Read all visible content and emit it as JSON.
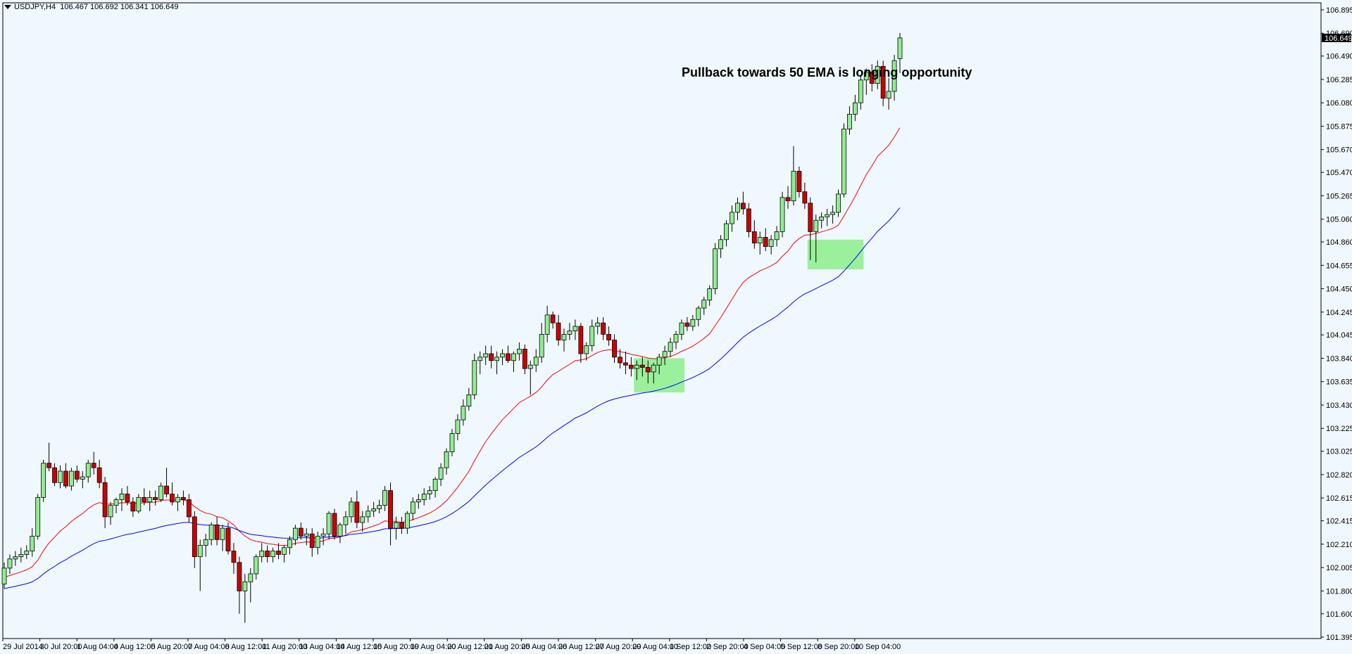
{
  "header": {
    "symbol": "USDJPY,H4",
    "ohlc": "106.467 106.692 106.341 106.649"
  },
  "annotation_text": "Pullback towards 50 EMA is longing opportunity",
  "current_price_label": "106.649",
  "colors": {
    "background": "#f0f8ff",
    "bull_body": "#90ee90",
    "bear_body": "#cc0000",
    "wick": "#000000",
    "ema_fast": "#ff0000",
    "ema_slow": "#0000ff",
    "highlight": "#90ee90"
  },
  "chart_data": {
    "type": "candlestick",
    "title": "",
    "ylim": [
      101.395,
      106.895
    ],
    "y_ticks": [
      "106.895",
      "106.690",
      "106.490",
      "106.285",
      "106.080",
      "105.875",
      "105.670",
      "105.470",
      "105.265",
      "105.060",
      "104.860",
      "104.655",
      "104.450",
      "104.245",
      "104.045",
      "103.840",
      "103.635",
      "103.430",
      "103.225",
      "103.025",
      "102.820",
      "102.615",
      "102.415",
      "102.210",
      "102.005",
      "101.800",
      "101.600",
      "101.395"
    ],
    "x_ticks": [
      "29 Jul 2014",
      "30 Jul 20:00",
      "1 Aug 04:00",
      "4 Aug 12:00",
      "5 Aug 20:00",
      "7 Aug 04:00",
      "8 Aug 12:00",
      "11 Aug 20:00",
      "13 Aug 04:00",
      "14 Aug 12:00",
      "15 Aug 20:00",
      "19 Aug 04:00",
      "20 Aug 12:00",
      "21 Aug 20:00",
      "25 Aug 04:00",
      "26 Aug 12:00",
      "27 Aug 20:00",
      "29 Aug 04:00",
      "1 Sep 12:00",
      "2 Sep 20:00",
      "4 Sep 04:00",
      "5 Sep 12:00",
      "8 Sep 20:00",
      "10 Sep 04:00"
    ],
    "candles": [
      [
        101.86,
        102.05,
        101.82,
        102.0
      ],
      [
        102.0,
        102.12,
        101.95,
        102.08
      ],
      [
        102.08,
        102.15,
        102.02,
        102.1
      ],
      [
        102.1,
        102.18,
        102.05,
        102.12
      ],
      [
        102.12,
        102.2,
        102.08,
        102.15
      ],
      [
        102.15,
        102.35,
        102.1,
        102.28
      ],
      [
        102.28,
        102.65,
        102.25,
        102.62
      ],
      [
        102.62,
        102.95,
        102.58,
        102.92
      ],
      [
        102.92,
        103.1,
        102.85,
        102.88
      ],
      [
        102.88,
        102.92,
        102.72,
        102.75
      ],
      [
        102.75,
        102.9,
        102.7,
        102.85
      ],
      [
        102.85,
        102.92,
        102.7,
        102.72
      ],
      [
        102.72,
        102.88,
        102.68,
        102.85
      ],
      [
        102.85,
        102.9,
        102.75,
        102.78
      ],
      [
        102.78,
        102.85,
        102.7,
        102.8
      ],
      [
        102.8,
        102.95,
        102.75,
        102.92
      ],
      [
        102.92,
        103.02,
        102.82,
        102.88
      ],
      [
        102.88,
        102.95,
        102.7,
        102.75
      ],
      [
        102.75,
        102.8,
        102.35,
        102.45
      ],
      [
        102.45,
        102.58,
        102.38,
        102.55
      ],
      [
        102.55,
        102.62,
        102.48,
        102.6
      ],
      [
        102.6,
        102.7,
        102.5,
        102.65
      ],
      [
        102.65,
        102.72,
        102.55,
        102.58
      ],
      [
        102.58,
        102.62,
        102.45,
        102.5
      ],
      [
        102.5,
        102.65,
        102.48,
        102.62
      ],
      [
        102.62,
        102.7,
        102.55,
        102.58
      ],
      [
        102.58,
        102.68,
        102.5,
        102.62
      ],
      [
        102.62,
        102.68,
        102.55,
        102.6
      ],
      [
        102.6,
        102.75,
        102.58,
        102.72
      ],
      [
        102.72,
        102.88,
        102.62,
        102.65
      ],
      [
        102.65,
        102.75,
        102.55,
        102.58
      ],
      [
        102.58,
        102.65,
        102.5,
        102.62
      ],
      [
        102.62,
        102.68,
        102.55,
        102.6
      ],
      [
        102.6,
        102.65,
        102.4,
        102.45
      ],
      [
        102.45,
        102.5,
        102.0,
        102.1
      ],
      [
        102.1,
        102.25,
        101.8,
        102.2
      ],
      [
        102.2,
        102.3,
        102.1,
        102.25
      ],
      [
        102.25,
        102.4,
        102.2,
        102.38
      ],
      [
        102.38,
        102.45,
        102.2,
        102.25
      ],
      [
        102.25,
        102.38,
        102.15,
        102.35
      ],
      [
        102.35,
        102.4,
        102.12,
        102.15
      ],
      [
        102.15,
        102.22,
        101.95,
        102.05
      ],
      [
        102.05,
        102.1,
        101.6,
        101.8
      ],
      [
        101.8,
        101.95,
        101.52,
        101.88
      ],
      [
        101.88,
        102.0,
        101.7,
        101.95
      ],
      [
        101.95,
        102.12,
        101.9,
        102.1
      ],
      [
        102.1,
        102.22,
        102.05,
        102.15
      ],
      [
        102.15,
        102.2,
        102.05,
        102.1
      ],
      [
        102.1,
        102.18,
        102.05,
        102.15
      ],
      [
        102.15,
        102.22,
        102.08,
        102.12
      ],
      [
        102.12,
        102.2,
        102.05,
        102.18
      ],
      [
        102.18,
        102.28,
        102.12,
        102.25
      ],
      [
        102.25,
        102.38,
        102.2,
        102.35
      ],
      [
        102.35,
        102.4,
        102.25,
        102.28
      ],
      [
        102.28,
        102.35,
        102.2,
        102.3
      ],
      [
        102.3,
        102.35,
        102.1,
        102.18
      ],
      [
        102.18,
        102.32,
        102.12,
        102.28
      ],
      [
        102.28,
        102.35,
        102.2,
        102.3
      ],
      [
        102.3,
        102.5,
        102.25,
        102.48
      ],
      [
        102.48,
        102.52,
        102.25,
        102.28
      ],
      [
        102.28,
        102.4,
        102.22,
        102.38
      ],
      [
        102.38,
        102.5,
        102.3,
        102.45
      ],
      [
        102.45,
        102.62,
        102.4,
        102.58
      ],
      [
        102.58,
        102.68,
        102.35,
        102.4
      ],
      [
        102.4,
        102.5,
        102.32,
        102.45
      ],
      [
        102.45,
        102.55,
        102.4,
        102.5
      ],
      [
        102.5,
        102.58,
        102.45,
        102.52
      ],
      [
        102.52,
        102.6,
        102.48,
        102.55
      ],
      [
        102.55,
        102.72,
        102.5,
        102.68
      ],
      [
        102.68,
        102.75,
        102.2,
        102.35
      ],
      [
        102.35,
        102.45,
        102.25,
        102.4
      ],
      [
        102.4,
        102.45,
        102.3,
        102.35
      ],
      [
        102.35,
        102.5,
        102.3,
        102.48
      ],
      [
        102.48,
        102.62,
        102.42,
        102.58
      ],
      [
        102.58,
        102.65,
        102.52,
        102.6
      ],
      [
        102.6,
        102.7,
        102.55,
        102.65
      ],
      [
        102.65,
        102.72,
        102.6,
        102.68
      ],
      [
        102.68,
        102.8,
        102.62,
        102.78
      ],
      [
        102.78,
        102.92,
        102.72,
        102.88
      ],
      [
        102.88,
        103.05,
        102.82,
        103.02
      ],
      [
        103.02,
        103.22,
        102.98,
        103.18
      ],
      [
        103.18,
        103.35,
        103.12,
        103.3
      ],
      [
        103.3,
        103.48,
        103.25,
        103.42
      ],
      [
        103.42,
        103.58,
        103.38,
        103.52
      ],
      [
        103.52,
        103.88,
        103.48,
        103.82
      ],
      [
        103.82,
        103.9,
        103.7,
        103.85
      ],
      [
        103.85,
        103.95,
        103.78,
        103.88
      ],
      [
        103.88,
        103.95,
        103.75,
        103.82
      ],
      [
        103.82,
        103.9,
        103.7,
        103.85
      ],
      [
        103.85,
        103.92,
        103.78,
        103.88
      ],
      [
        103.88,
        103.95,
        103.8,
        103.82
      ],
      [
        103.82,
        103.9,
        103.72,
        103.88
      ],
      [
        103.88,
        103.98,
        103.82,
        103.92
      ],
      [
        103.92,
        103.96,
        103.7,
        103.75
      ],
      [
        103.75,
        103.82,
        103.52,
        103.78
      ],
      [
        103.78,
        103.92,
        103.72,
        103.85
      ],
      [
        103.85,
        104.15,
        103.8,
        104.05
      ],
      [
        104.05,
        104.3,
        103.98,
        104.22
      ],
      [
        104.22,
        104.25,
        104.1,
        104.15
      ],
      [
        104.15,
        104.22,
        103.95,
        104.0
      ],
      [
        104.0,
        104.1,
        103.9,
        104.05
      ],
      [
        104.05,
        104.15,
        104.0,
        104.08
      ],
      [
        104.08,
        104.18,
        104.0,
        104.12
      ],
      [
        104.12,
        104.15,
        103.8,
        103.88
      ],
      [
        103.88,
        103.98,
        103.82,
        103.95
      ],
      [
        103.95,
        104.18,
        103.9,
        104.12
      ],
      [
        104.12,
        104.2,
        104.05,
        104.15
      ],
      [
        104.15,
        104.2,
        104.0,
        104.05
      ],
      [
        104.05,
        104.12,
        103.95,
        104.0
      ],
      [
        104.0,
        104.05,
        103.8,
        103.85
      ],
      [
        103.85,
        103.92,
        103.75,
        103.8
      ],
      [
        103.8,
        103.9,
        103.7,
        103.78
      ],
      [
        103.78,
        103.85,
        103.68,
        103.75
      ],
      [
        103.75,
        103.82,
        103.65,
        103.78
      ],
      [
        103.78,
        103.85,
        103.68,
        103.76
      ],
      [
        103.76,
        103.82,
        103.62,
        103.72
      ],
      [
        103.72,
        103.8,
        103.62,
        103.78
      ],
      [
        103.78,
        103.88,
        103.7,
        103.85
      ],
      [
        103.85,
        103.95,
        103.78,
        103.9
      ],
      [
        103.9,
        104.02,
        103.85,
        103.98
      ],
      [
        103.98,
        104.08,
        103.92,
        104.05
      ],
      [
        104.05,
        104.18,
        104.0,
        104.15
      ],
      [
        104.15,
        104.2,
        104.08,
        104.12
      ],
      [
        104.12,
        104.22,
        104.08,
        104.18
      ],
      [
        104.18,
        104.3,
        104.12,
        104.28
      ],
      [
        104.28,
        104.38,
        104.22,
        104.35
      ],
      [
        104.35,
        104.48,
        104.3,
        104.45
      ],
      [
        104.45,
        104.85,
        104.4,
        104.8
      ],
      [
        104.8,
        104.92,
        104.72,
        104.88
      ],
      [
        104.88,
        105.05,
        104.82,
        105.02
      ],
      [
        105.02,
        105.18,
        104.95,
        105.12
      ],
      [
        105.12,
        105.25,
        105.05,
        105.2
      ],
      [
        105.2,
        105.3,
        105.1,
        105.15
      ],
      [
        105.15,
        105.2,
        104.9,
        104.95
      ],
      [
        104.95,
        105.05,
        104.8,
        104.85
      ],
      [
        104.85,
        104.95,
        104.75,
        104.9
      ],
      [
        104.9,
        104.98,
        104.78,
        104.82
      ],
      [
        104.82,
        104.92,
        104.75,
        104.88
      ],
      [
        104.88,
        105.0,
        104.82,
        104.95
      ],
      [
        104.95,
        105.3,
        104.9,
        105.25
      ],
      [
        105.25,
        105.35,
        105.15,
        105.22
      ],
      [
        105.22,
        105.7,
        105.18,
        105.48
      ],
      [
        105.48,
        105.52,
        105.25,
        105.3
      ],
      [
        105.3,
        105.38,
        105.15,
        105.2
      ],
      [
        105.2,
        105.25,
        104.7,
        104.95
      ],
      [
        104.95,
        105.1,
        104.68,
        105.05
      ],
      [
        105.05,
        105.12,
        104.98,
        105.08
      ],
      [
        105.08,
        105.15,
        105.0,
        105.1
      ],
      [
        105.1,
        105.18,
        105.02,
        105.12
      ],
      [
        105.12,
        105.32,
        105.08,
        105.28
      ],
      [
        105.28,
        105.9,
        105.25,
        105.85
      ],
      [
        105.85,
        106.05,
        105.8,
        105.98
      ],
      [
        105.98,
        106.15,
        105.92,
        106.08
      ],
      [
        106.08,
        106.32,
        106.02,
        106.28
      ],
      [
        106.28,
        106.38,
        106.15,
        106.35
      ],
      [
        106.35,
        106.42,
        106.18,
        106.25
      ],
      [
        106.25,
        106.45,
        106.2,
        106.4
      ],
      [
        106.4,
        106.45,
        106.05,
        106.12
      ],
      [
        106.12,
        106.3,
        106.02,
        106.18
      ],
      [
        106.18,
        106.5,
        106.1,
        106.45
      ],
      [
        106.467,
        106.692,
        106.341,
        106.649
      ]
    ],
    "series": [
      {
        "name": "",
        "color": "#ff0000",
        "values_note_ref": "ema_fast"
      },
      {
        "name": "",
        "color": "#0000ff",
        "values_note_ref": "ema_slow"
      }
    ],
    "highlights": [
      {
        "from_index": 113,
        "to_index": 121,
        "y_low": 103.54,
        "y_high": 103.84
      },
      {
        "from_index": 144,
        "to_index": 153,
        "y_low": 104.62,
        "y_high": 104.88
      }
    ],
    "grid": false,
    "legend": "none"
  }
}
